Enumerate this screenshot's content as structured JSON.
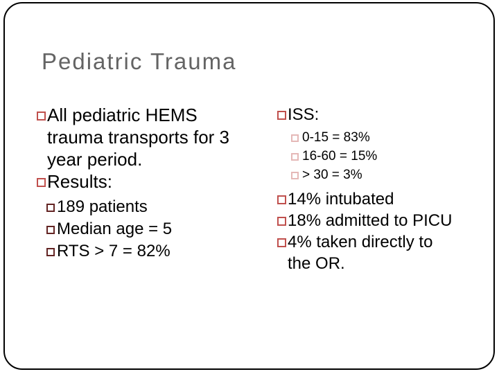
{
  "slide": {
    "title": "Pediatric Trauma",
    "left_column": {
      "items": [
        {
          "level": 1,
          "text": "All pediatric HEMS trauma transports for 3 year period."
        },
        {
          "level": 1,
          "text": "Results:"
        },
        {
          "level": 2,
          "text": "189 patients"
        },
        {
          "level": 2,
          "text": "Median age = 5"
        },
        {
          "level": 2,
          "text": "RTS > 7 = 82%"
        }
      ]
    },
    "right_column": {
      "items": [
        {
          "level": 1,
          "text": "ISS:"
        },
        {
          "level": 3,
          "text": "0-15 = 83%"
        },
        {
          "level": 3,
          "text": "16-60 = 15%"
        },
        {
          "level": 3,
          "text": "> 30 = 3%"
        },
        {
          "level": 1,
          "text": "14% intubated"
        },
        {
          "level": 1,
          "text": "18% admitted to PICU"
        },
        {
          "level": 1,
          "text": "4% taken directly to the OR."
        }
      ]
    },
    "colors": {
      "bullet_level1": "#C0504D",
      "bullet_level2": "#632423",
      "bullet_level3": "#E5B8B7",
      "title_text": "#646464",
      "body_text": "#000000",
      "slide_border": "#000000",
      "background": "#FFFFFF"
    }
  }
}
